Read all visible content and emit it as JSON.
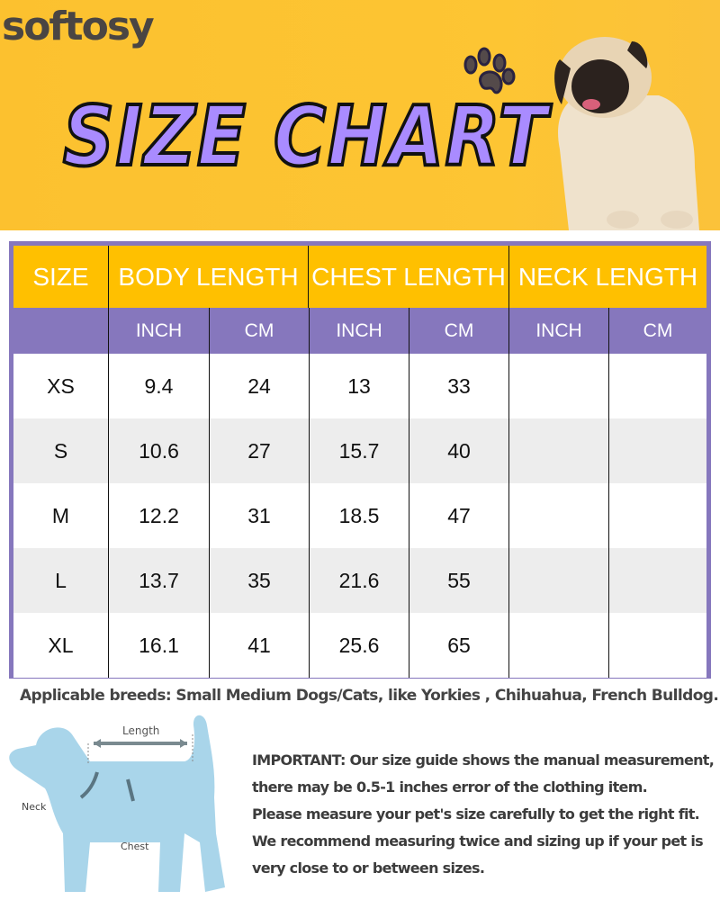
{
  "brand": "softosy",
  "title": "SIZE CHART",
  "table": {
    "headers": [
      "SIZE",
      "BODY LENGTH",
      "CHEST LENGTH",
      "NECK LENGTH"
    ],
    "subheaders": [
      "",
      "INCH",
      "CM",
      "INCH",
      "CM",
      "INCH",
      "CM"
    ],
    "rows": [
      [
        "XS",
        "9.4",
        "24",
        "13",
        "33",
        "",
        ""
      ],
      [
        "S",
        "10.6",
        "27",
        "15.7",
        "40",
        "",
        ""
      ],
      [
        "M",
        "12.2",
        "31",
        "18.5",
        "47",
        "",
        ""
      ],
      [
        "L",
        "13.7",
        "35",
        "21.6",
        "55",
        "",
        ""
      ],
      [
        "XL",
        "16.1",
        "41",
        "25.6",
        "65",
        "",
        ""
      ]
    ]
  },
  "breeds": "Applicable breeds: Small Medium Dogs/Cats, like Yorkies , Chihuahua, French Bulldog.",
  "diagram": {
    "length": "Length",
    "neck": "Neck",
    "chest": "Chest"
  },
  "important": [
    "IMPORTANT: Our size guide shows the manual measurement,",
    "there may be 0.5-1 inches error of the clothing item.",
    "Please measure your pet's size carefully to get the right fit.",
    "We recommend measuring twice and sizing up if your pet is",
    "very close to or between sizes."
  ],
  "colors": {
    "banner": "#fdc533",
    "title": "#a98bff",
    "header": "#ffc000",
    "subheader": "#8677bd",
    "alt_row": "#ededed"
  }
}
